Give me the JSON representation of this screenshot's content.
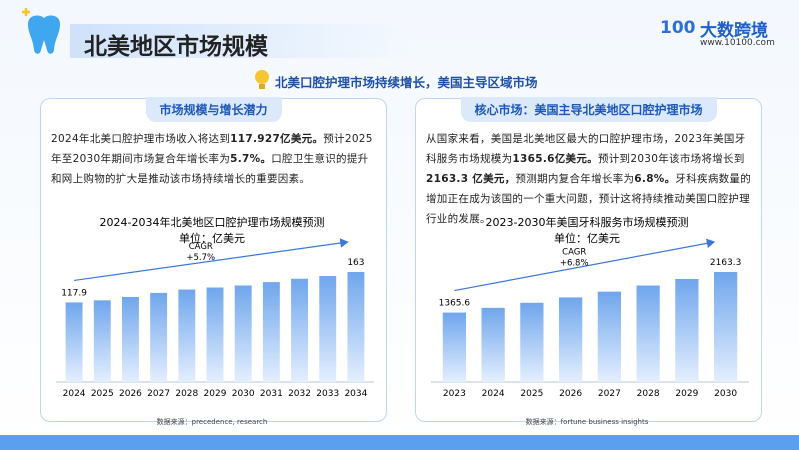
{
  "header": {
    "title": "北美地区市场规模",
    "logo_mark": "100",
    "logo_name": "大数跨境",
    "logo_url": "www.10100.com"
  },
  "banner": "北美口腔护理市场持续增长，美国主导区域市场",
  "panels": [
    {
      "heading": "市场规模与增长潜力",
      "runs": [
        {
          "text": "2024年北美口腔护理市场收入将达到",
          "bold": false
        },
        {
          "text": "117.927亿美元。",
          "bold": true
        },
        {
          "text": "预计2025年至2030年期间市场复合年增长率为",
          "bold": false
        },
        {
          "text": "5.7%。",
          "bold": true
        },
        {
          "text": "口腔卫生意识的提升和网上购物的扩大是推动该市场持续增长的重要因素。",
          "bold": false
        }
      ]
    },
    {
      "heading": "核心市场：美国主导北美地区口腔护理市场",
      "runs": [
        {
          "text": "从国家来看，美国是北美地区最大的口腔护理市场，2023年美国牙科服务市场规模为",
          "bold": false
        },
        {
          "text": "1365.6亿美元。",
          "bold": true
        },
        {
          "text": "预计到2030年该市场将增长到",
          "bold": false
        },
        {
          "text": "2163.3 亿美元，",
          "bold": true
        },
        {
          "text": "预测期内复合年增长率为",
          "bold": false
        },
        {
          "text": "6.8%。",
          "bold": true
        },
        {
          "text": "牙科疾病数量的增加正在成为该国的一个重大问题，预计这将持续推动美国口腔护理行业的发展。",
          "bold": false
        }
      ]
    }
  ],
  "chart_data": [
    {
      "type": "bar",
      "title": "2024-2034年北美地区口腔护理市场规模预测",
      "subtitle": "单位：亿美元",
      "categories": [
        "2024",
        "2025",
        "2026",
        "2027",
        "2028",
        "2029",
        "2030",
        "2031",
        "2032",
        "2033",
        "2034"
      ],
      "values": [
        117.9,
        121,
        126,
        132,
        137,
        140,
        143,
        148,
        153,
        157,
        163
      ],
      "value_labels": [
        "117.9",
        null,
        null,
        null,
        null,
        null,
        null,
        null,
        null,
        null,
        "163"
      ],
      "annotations": [
        "CAGR",
        "+5.7%"
      ],
      "source": "数据来源：precedence, research",
      "color": "#6fa6ec"
    },
    {
      "type": "bar",
      "title": "2023-2030年美国牙科服务市场规模预测",
      "subtitle": "单位：亿美元",
      "categories": [
        "2023",
        "2024",
        "2025",
        "2026",
        "2027",
        "2028",
        "2029",
        "2030"
      ],
      "values": [
        1365.6,
        1458.5,
        1557.7,
        1663.6,
        1776.7,
        1897.5,
        2026.5,
        2163.3
      ],
      "value_labels": [
        "1365.6",
        null,
        null,
        null,
        null,
        null,
        null,
        "2163.3"
      ],
      "annotations": [
        "CAGR",
        "+6.8%"
      ],
      "source": "数据来源：fortune business insights",
      "color": "#6fa6ec"
    }
  ]
}
